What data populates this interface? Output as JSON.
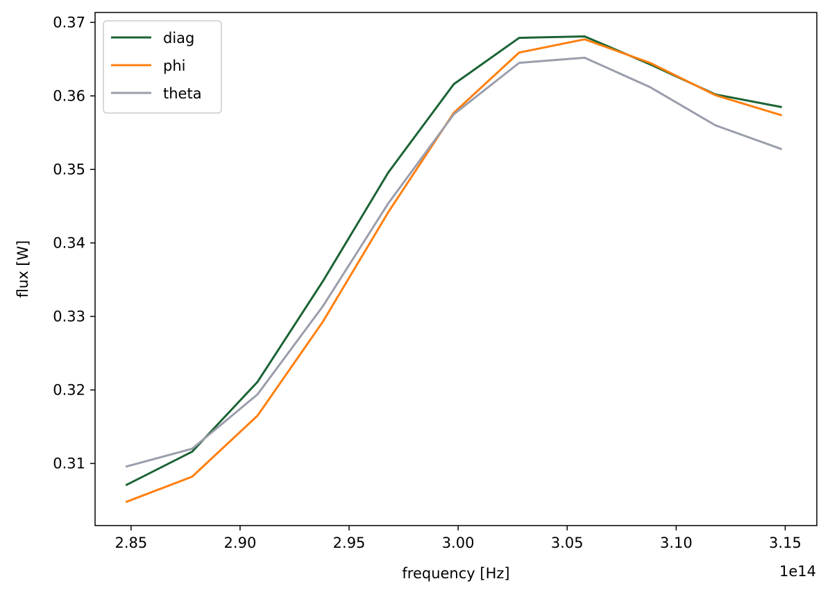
{
  "chart_data": {
    "type": "line",
    "xlabel": "frequency [Hz]",
    "ylabel": "flux [W]",
    "x_offset_label": "1e14",
    "xlim": [
      2.8335,
      3.1645
    ],
    "ylim": [
      0.30155,
      0.37135
    ],
    "x_ticks": [
      2.85,
      2.9,
      2.95,
      3.0,
      3.05,
      3.1,
      3.15
    ],
    "x_tick_labels": [
      "2.85",
      "2.90",
      "2.95",
      "3.00",
      "3.05",
      "3.10",
      "3.15"
    ],
    "y_ticks": [
      0.31,
      0.32,
      0.33,
      0.34,
      0.35,
      0.36,
      0.37
    ],
    "y_tick_labels": [
      "0.31",
      "0.32",
      "0.33",
      "0.34",
      "0.35",
      "0.36",
      "0.37"
    ],
    "x": [
      2.848,
      2.878,
      2.908,
      2.938,
      2.968,
      2.998,
      3.028,
      3.058,
      3.088,
      3.118,
      3.148
    ],
    "series": [
      {
        "name": "diag",
        "color": "#1a6334",
        "values": [
          0.3071,
          0.3116,
          0.3211,
          0.3348,
          0.3496,
          0.3616,
          0.3679,
          0.3681,
          0.3643,
          0.3602,
          0.3585
        ]
      },
      {
        "name": "phi",
        "color": "#ff7f0e",
        "values": [
          0.3048,
          0.3082,
          0.3165,
          0.3293,
          0.3442,
          0.3577,
          0.3659,
          0.3677,
          0.3645,
          0.3601,
          0.3574
        ]
      },
      {
        "name": "theta",
        "color": "#9a9dab",
        "values": [
          0.3096,
          0.312,
          0.3194,
          0.3314,
          0.3454,
          0.3575,
          0.3645,
          0.3652,
          0.3612,
          0.356,
          0.3528
        ]
      }
    ],
    "legend_position": "upper-left",
    "grid": false
  }
}
